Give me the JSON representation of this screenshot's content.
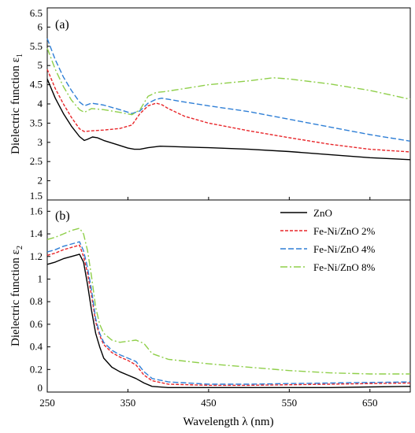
{
  "chart_data": [
    {
      "type": "line",
      "panel_label": "(a)",
      "ylabel": "Dielectric function ε",
      "ylabel_sub": "1",
      "xlim": [
        250,
        700
      ],
      "ylim": [
        1.5,
        6.5
      ],
      "x_ticks": [
        250,
        350,
        450,
        550,
        650
      ],
      "y_ticks": [
        "1.5",
        "2",
        "2.5",
        "3",
        "3.5",
        "4",
        "4.5",
        "5",
        "5.5",
        "6",
        "6.5"
      ],
      "grid": false,
      "series": [
        {
          "name": "ZnO",
          "color": "#000000",
          "dash": "solid",
          "x": [
            250,
            260,
            270,
            280,
            290,
            296,
            300,
            306,
            312,
            320,
            335,
            350,
            358,
            365,
            375,
            390,
            420,
            450,
            500,
            550,
            600,
            650,
            700
          ],
          "y": [
            4.65,
            4.15,
            3.75,
            3.42,
            3.15,
            3.05,
            3.08,
            3.14,
            3.12,
            3.05,
            2.95,
            2.85,
            2.82,
            2.82,
            2.86,
            2.9,
            2.88,
            2.86,
            2.82,
            2.76,
            2.68,
            2.6,
            2.55
          ]
        },
        {
          "name": "Fe-Ni/ZnO 2%",
          "color": "#e8262a",
          "dash": "red",
          "x": [
            250,
            260,
            270,
            280,
            290,
            296,
            305,
            320,
            340,
            355,
            365,
            375,
            385,
            392,
            400,
            420,
            450,
            500,
            550,
            600,
            650,
            700
          ],
          "y": [
            4.9,
            4.4,
            4.0,
            3.65,
            3.35,
            3.28,
            3.3,
            3.32,
            3.36,
            3.45,
            3.75,
            3.95,
            4.02,
            3.98,
            3.88,
            3.68,
            3.5,
            3.3,
            3.12,
            2.95,
            2.82,
            2.75
          ]
        },
        {
          "name": "Fe-Ni/ZnO 4%",
          "color": "#2f7fd6",
          "dash": "blue",
          "x": [
            250,
            260,
            270,
            280,
            290,
            296,
            305,
            320,
            340,
            355,
            365,
            375,
            385,
            392,
            400,
            420,
            450,
            500,
            550,
            600,
            650,
            700
          ],
          "y": [
            5.7,
            5.15,
            4.7,
            4.35,
            4.05,
            3.95,
            4.02,
            3.97,
            3.85,
            3.75,
            3.82,
            4.02,
            4.12,
            4.15,
            4.12,
            4.05,
            3.95,
            3.8,
            3.6,
            3.4,
            3.2,
            3.03
          ]
        },
        {
          "name": "Fe-Ni/ZnO 8%",
          "color": "#8fcf4a",
          "dash": "green",
          "x": [
            250,
            260,
            270,
            280,
            290,
            296,
            305,
            320,
            340,
            355,
            365,
            375,
            385,
            395,
            420,
            450,
            480,
            500,
            530,
            550,
            600,
            650,
            700
          ],
          "y": [
            5.45,
            4.9,
            4.45,
            4.1,
            3.85,
            3.78,
            3.88,
            3.85,
            3.78,
            3.72,
            3.85,
            4.2,
            4.3,
            4.32,
            4.4,
            4.5,
            4.56,
            4.6,
            4.68,
            4.65,
            4.52,
            4.35,
            4.12
          ]
        }
      ]
    },
    {
      "type": "line",
      "panel_label": "(b)",
      "xlabel": "Wavelength λ (nm)",
      "ylabel": "Dielectric function ε",
      "ylabel_sub": "2",
      "xlim": [
        250,
        700
      ],
      "ylim": [
        0,
        1.7
      ],
      "x_ticks": [
        250,
        350,
        450,
        550,
        650
      ],
      "y_ticks": [
        "0",
        "0.2",
        "0.4",
        "0.6",
        "0.8",
        "1",
        "1.2",
        "1.4",
        "1.6"
      ],
      "grid": false,
      "legend_position": "right",
      "series": [
        {
          "name": "ZnO",
          "color": "#000000",
          "dash": "solid",
          "x": [
            250,
            260,
            270,
            280,
            290,
            295,
            300,
            305,
            310,
            315,
            320,
            330,
            340,
            350,
            360,
            370,
            380,
            400,
            450,
            500,
            550,
            600,
            650,
            700
          ],
          "y": [
            1.13,
            1.15,
            1.18,
            1.2,
            1.22,
            1.15,
            0.95,
            0.72,
            0.52,
            0.4,
            0.3,
            0.22,
            0.18,
            0.15,
            0.12,
            0.08,
            0.05,
            0.04,
            0.04,
            0.04,
            0.04,
            0.04,
            0.045,
            0.05
          ]
        },
        {
          "name": "Fe-Ni/ZnO 2%",
          "color": "#e8262a",
          "dash": "red",
          "x": [
            250,
            260,
            270,
            280,
            290,
            295,
            300,
            305,
            310,
            315,
            320,
            330,
            340,
            350,
            360,
            370,
            380,
            400,
            450,
            500,
            550,
            600,
            650,
            700
          ],
          "y": [
            1.21,
            1.23,
            1.26,
            1.28,
            1.3,
            1.2,
            1.05,
            0.85,
            0.62,
            0.5,
            0.42,
            0.35,
            0.31,
            0.28,
            0.24,
            0.15,
            0.1,
            0.07,
            0.06,
            0.06,
            0.065,
            0.07,
            0.075,
            0.08
          ]
        },
        {
          "name": "Fe-Ni/ZnO 4%",
          "color": "#2f7fd6",
          "dash": "blue",
          "x": [
            250,
            260,
            270,
            280,
            290,
            295,
            300,
            305,
            310,
            315,
            320,
            330,
            340,
            350,
            360,
            370,
            380,
            400,
            450,
            500,
            550,
            600,
            650,
            700
          ],
          "y": [
            1.24,
            1.26,
            1.29,
            1.31,
            1.33,
            1.25,
            1.1,
            0.9,
            0.65,
            0.52,
            0.44,
            0.37,
            0.33,
            0.3,
            0.27,
            0.18,
            0.12,
            0.09,
            0.07,
            0.07,
            0.075,
            0.08,
            0.085,
            0.09
          ]
        },
        {
          "name": "Fe-Ni/ZnO 8%",
          "color": "#8fcf4a",
          "dash": "green",
          "x": [
            250,
            260,
            270,
            280,
            290,
            295,
            300,
            305,
            310,
            315,
            320,
            330,
            340,
            350,
            360,
            370,
            380,
            400,
            450,
            500,
            550,
            600,
            650,
            700
          ],
          "y": [
            1.35,
            1.37,
            1.4,
            1.43,
            1.45,
            1.4,
            1.25,
            1.02,
            0.75,
            0.6,
            0.52,
            0.46,
            0.44,
            0.45,
            0.46,
            0.43,
            0.34,
            0.29,
            0.25,
            0.22,
            0.19,
            0.17,
            0.16,
            0.16
          ]
        }
      ]
    }
  ]
}
